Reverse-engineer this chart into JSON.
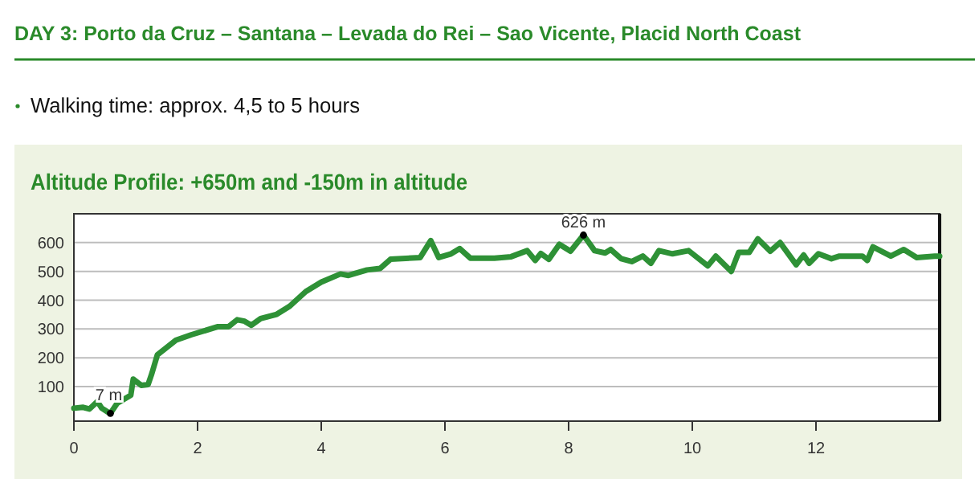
{
  "chart_data": {
    "type": "line",
    "title": "DAY 3: Porto da Cruz – Santana – Levada do Rei – Sao Vicente, Placid North Coast",
    "subtitle": "Altitude Profile: +650m and -150m in altitude",
    "annotations": [
      "Walking time: approx. 4,5 to 5 hours",
      {
        "text": "7 m",
        "x": 0.59,
        "y": 7
      },
      {
        "text": "626 m",
        "x": 8.24,
        "y": 626
      }
    ],
    "series": [
      {
        "color": "#2e9136",
        "x": [
          0,
          0.15,
          0.25,
          0.38,
          0.45,
          0.53,
          0.59,
          0.7,
          0.92,
          0.96,
          1.09,
          1.2,
          1.26,
          1.35,
          1.65,
          1.9,
          2.33,
          2.5,
          2.64,
          2.76,
          2.87,
          3.02,
          3.28,
          3.49,
          3.75,
          4.0,
          4.31,
          4.44,
          4.74,
          4.95,
          5.12,
          5.6,
          5.77,
          5.9,
          6.1,
          6.24,
          6.41,
          6.8,
          7.07,
          7.33,
          7.46,
          7.55,
          7.68,
          7.85,
          8.03,
          8.24,
          8.42,
          8.59,
          8.68,
          8.85,
          9.02,
          9.2,
          9.33,
          9.46,
          9.68,
          9.94,
          10.25,
          10.38,
          10.63,
          10.75,
          10.92,
          11.06,
          11.26,
          11.42,
          11.68,
          11.8,
          11.89,
          12.04,
          12.25,
          12.38,
          12.75,
          12.83,
          12.92,
          13.21,
          13.42,
          13.63,
          13.92,
          14
        ],
        "values": [
          25,
          28,
          22,
          48,
          25,
          14,
          7,
          42,
          70,
          126,
          104,
          107,
          145,
          210,
          261,
          280,
          308,
          308,
          332,
          327,
          313,
          336,
          351,
          379,
          430,
          463,
          491,
          486,
          505,
          510,
          542,
          548,
          607,
          548,
          561,
          579,
          546,
          546,
          551,
          572,
          538,
          562,
          542,
          594,
          570,
          626,
          572,
          564,
          576,
          544,
          534,
          553,
          528,
          572,
          561,
          572,
          519,
          553,
          500,
          566,
          566,
          613,
          570,
          600,
          523,
          557,
          528,
          561,
          544,
          553,
          553,
          538,
          585,
          553,
          576,
          548,
          553,
          553
        ]
      }
    ],
    "xlim": [
      0,
      14
    ],
    "xticks": [
      0,
      2,
      4,
      6,
      8,
      10,
      12
    ],
    "ylim": [
      -20,
      700
    ],
    "yticks": [
      100,
      200,
      300,
      400,
      500,
      600
    ],
    "grid": "y",
    "marker": "none",
    "line_style": "solid"
  }
}
